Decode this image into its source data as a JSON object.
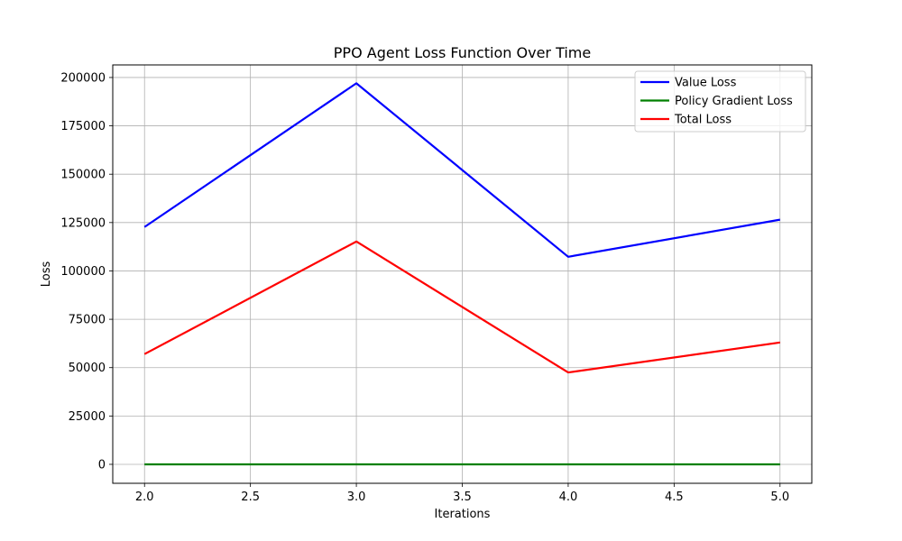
{
  "chart_data": {
    "type": "line",
    "title": "PPO Agent Loss Function Over Time",
    "xlabel": "Iterations",
    "ylabel": "Loss",
    "xlim": [
      1.85,
      5.15
    ],
    "ylim": [
      -9800,
      206500
    ],
    "xticks": [
      2.0,
      2.5,
      3.0,
      3.5,
      4.0,
      4.5,
      5.0
    ],
    "xtick_labels": [
      "2.0",
      "2.5",
      "3.0",
      "3.5",
      "4.0",
      "4.5",
      "5.0"
    ],
    "yticks": [
      0,
      25000,
      50000,
      75000,
      100000,
      125000,
      150000,
      175000,
      200000
    ],
    "ytick_labels": [
      "0",
      "25000",
      "50000",
      "75000",
      "100000",
      "125000",
      "150000",
      "175000",
      "200000"
    ],
    "grid": true,
    "legend_position": "top-right",
    "x": [
      2,
      3,
      4,
      5
    ],
    "series": [
      {
        "name": "Value Loss",
        "color": "#0000ff",
        "values": [
          122700,
          197000,
          107300,
          126500
        ]
      },
      {
        "name": "Policy Gradient Loss",
        "color": "#008000",
        "values": [
          0,
          0,
          0,
          0
        ]
      },
      {
        "name": "Total Loss",
        "color": "#ff0000",
        "values": [
          57000,
          115200,
          47500,
          63000
        ]
      }
    ]
  }
}
